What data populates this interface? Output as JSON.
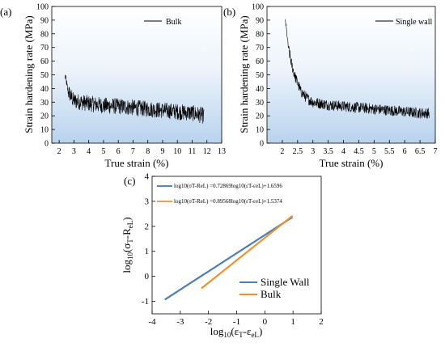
{
  "chart_data": [
    {
      "panel": "(a)",
      "type": "line",
      "legend": [
        "Bulk"
      ],
      "xlabel": "True strain (%)",
      "ylabel": "Strain hardening rate (MPa)",
      "xlim": [
        1.5,
        13
      ],
      "ylim": [
        0,
        100
      ],
      "xticks": [
        2,
        3,
        4,
        5,
        6,
        7,
        8,
        9,
        10,
        11,
        12,
        13
      ],
      "yticks": [
        0,
        10,
        20,
        30,
        40,
        50,
        60,
        70,
        80,
        90,
        100
      ],
      "background": "gradient-light-blue",
      "series": [
        {
          "name": "Bulk",
          "color": "#000000",
          "x": [
            2.4,
            2.5,
            2.6,
            2.8,
            3.0,
            3.5,
            4.0,
            5.0,
            6.0,
            7.0,
            8.0,
            9.0,
            10.0,
            11.0,
            11.8
          ],
          "y": [
            49,
            44,
            38,
            34,
            31,
            30,
            29,
            27.5,
            27,
            26,
            25,
            24,
            23,
            22,
            20
          ],
          "noise": 6
        }
      ]
    },
    {
      "panel": "(b)",
      "type": "line",
      "legend": [
        "Single wall"
      ],
      "xlabel": "True strain (%)",
      "ylabel": "Strain hardening rate (MPa)",
      "xlim": [
        1.5,
        7
      ],
      "ylim": [
        0,
        100
      ],
      "xticks": [
        2,
        2.5,
        3,
        3.5,
        4,
        4.5,
        5,
        5.5,
        6,
        6.5,
        7
      ],
      "yticks": [
        0,
        10,
        20,
        30,
        40,
        50,
        60,
        70,
        80,
        90,
        100
      ],
      "background": "gradient-light-blue",
      "series": [
        {
          "name": "Single wall",
          "color": "#000000",
          "x": [
            2.1,
            2.15,
            2.2,
            2.3,
            2.4,
            2.5,
            2.6,
            2.8,
            3.0,
            3.5,
            4.0,
            4.5,
            5.0,
            5.5,
            6.0,
            6.5,
            6.8
          ],
          "y": [
            90,
            80,
            70,
            58,
            50,
            44,
            38,
            33,
            30,
            28,
            27,
            26,
            25,
            24,
            23,
            22,
            22
          ],
          "noise": 4
        }
      ]
    },
    {
      "panel": "(c)",
      "type": "line",
      "xlabel": "log10(εT-εeL)",
      "ylabel": "log10(σT-ReL)",
      "xlim": [
        -4,
        2
      ],
      "ylim": [
        -1.5,
        4
      ],
      "xticks": [
        -4,
        -3,
        -2,
        -1,
        0,
        1,
        2
      ],
      "yticks": [
        -1,
        0,
        1,
        2,
        3,
        4
      ],
      "equations": [
        {
          "text": "log10(σT-ReL) =0.72869log10(εT-εeL)+1.6596",
          "color": "#3a78b8"
        },
        {
          "text": "log10(σT-ReL) =0.89568log10(εT-εeL)+1.5374",
          "color": "#f0902a"
        }
      ],
      "series": [
        {
          "name": "Single Wall",
          "color": "#4a7fb5",
          "x": [
            -3.55,
            0.98
          ],
          "y": [
            -0.93,
            2.37
          ]
        },
        {
          "name": "Bulk",
          "color": "#f0902a",
          "x": [
            -2.25,
            0.98
          ],
          "y": [
            -0.48,
            2.42
          ]
        }
      ]
    }
  ],
  "labels": {
    "panel_a": "(a)",
    "panel_b": "(b)",
    "panel_c": "(c)",
    "legend_bulk": "Bulk",
    "legend_single_wall": "Single wall",
    "c_legend_single": "Single Wall",
    "c_legend_bulk": "Bulk"
  }
}
